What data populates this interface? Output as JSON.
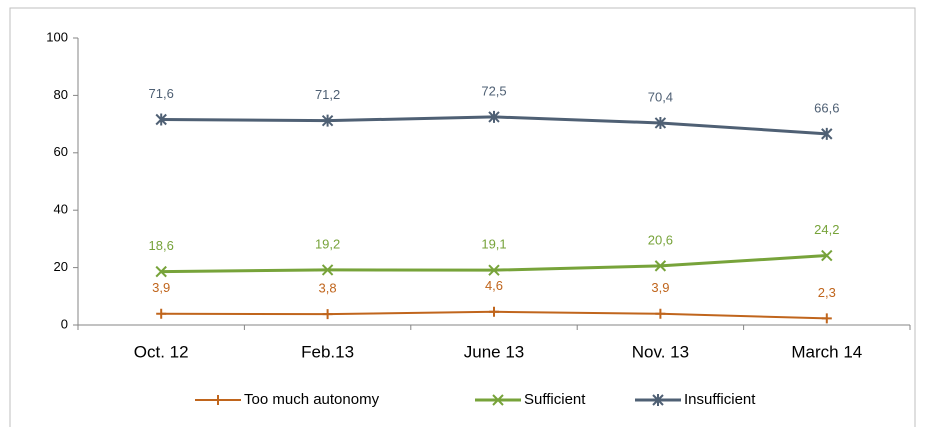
{
  "chart_data": {
    "type": "line",
    "categories": [
      "Oct. 12",
      "Feb.13",
      "June 13",
      "Nov. 13",
      "March 14"
    ],
    "series": [
      {
        "name": "Too much autonomy",
        "color": "#c0651c",
        "marker": "plus",
        "values": [
          3.9,
          3.8,
          4.6,
          3.9,
          2.3
        ],
        "value_labels": [
          "3,9",
          "3,8",
          "4,6",
          "3,9",
          "2,3"
        ]
      },
      {
        "name": "Sufficient",
        "color": "#77a33a",
        "marker": "x",
        "values": [
          18.6,
          19.2,
          19.1,
          20.6,
          24.2
        ],
        "value_labels": [
          "18,6",
          "19,2",
          "19,1",
          "20,6",
          "24,2"
        ]
      },
      {
        "name": "Insufficient",
        "color": "#4f6074",
        "marker": "asterisk",
        "values": [
          71.6,
          71.2,
          72.5,
          70.4,
          66.6
        ],
        "value_labels": [
          "71,6",
          "71,2",
          "72,5",
          "70,4",
          "66,6"
        ]
      }
    ],
    "ylim": [
      0,
      100
    ],
    "yticks": [
      0,
      20,
      40,
      60,
      80,
      100
    ],
    "grid": false,
    "legend": "bottom"
  }
}
